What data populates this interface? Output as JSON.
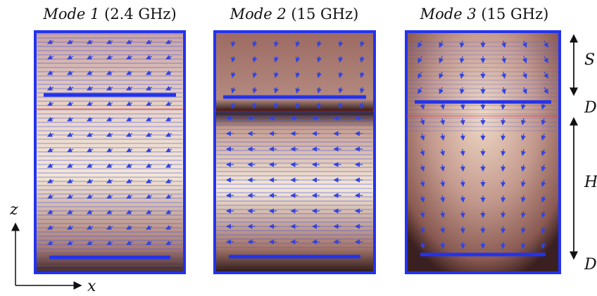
{
  "panels": [
    {
      "mode": "Mode 1",
      "frequency": "(2.4 GHz)"
    },
    {
      "mode": "Mode 2",
      "frequency": "(15 GHz)"
    },
    {
      "mode": "Mode 3",
      "frequency": "(15 GHz)"
    }
  ],
  "dimension_labels": [
    "S",
    "D",
    "H",
    "D"
  ],
  "axes": {
    "vertical": "z",
    "horizontal": "x"
  }
}
